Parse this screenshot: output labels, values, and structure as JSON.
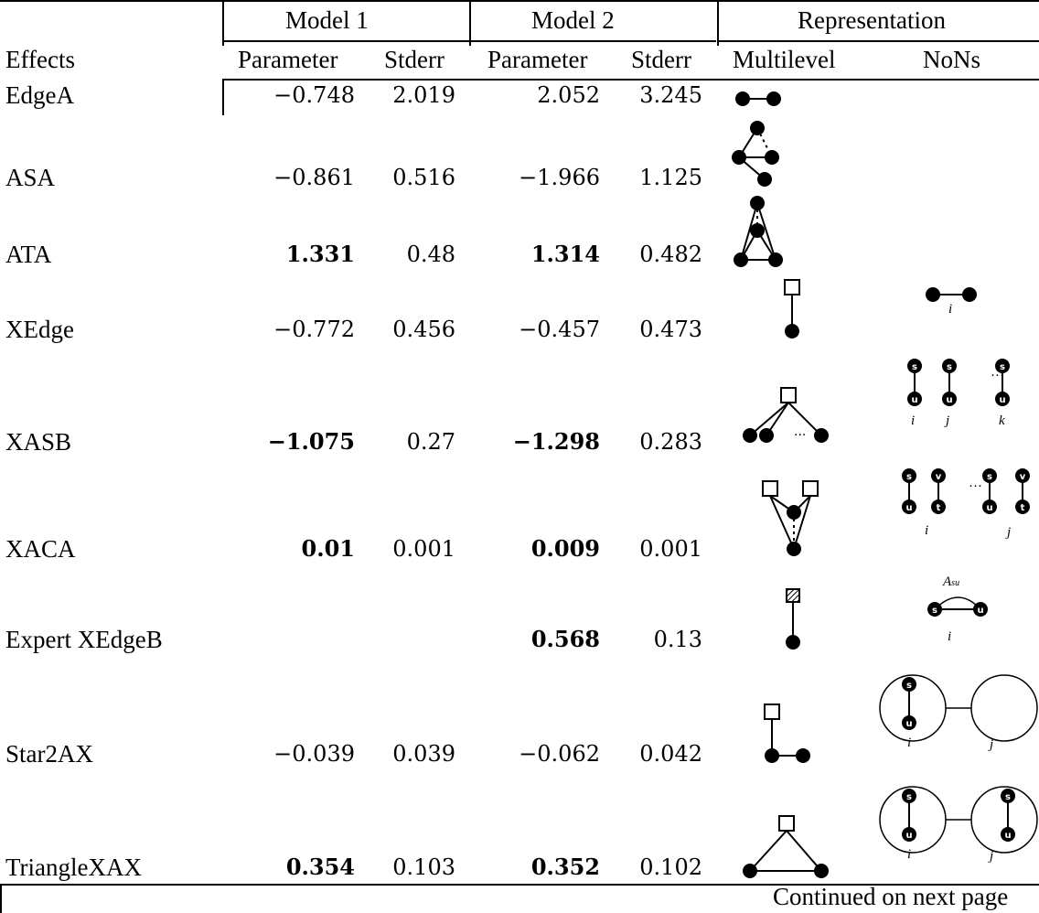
{
  "header": {
    "group1": "Model 1",
    "group2": "Model 2",
    "group3": "Representation",
    "effects": "Effects",
    "parameter": "Parameter",
    "stderr": "Stderr",
    "multilevel": "Multilevel",
    "nons": "NoNs"
  },
  "rows": [
    {
      "effect": "EdgeA",
      "m1_param": "−0.748",
      "m1_se": "2.019",
      "m2_param": "2.052",
      "m2_se": "3.245",
      "m1_bold": false,
      "m2_bold": false,
      "multilevel_icon": "edge-icon",
      "nons_icon": ""
    },
    {
      "effect": "ASA",
      "m1_param": "−0.861",
      "m1_se": "0.516",
      "m2_param": "−1.966",
      "m2_se": "1.125",
      "m1_bold": false,
      "m2_bold": false,
      "multilevel_icon": "alternating-star-icon",
      "nons_icon": ""
    },
    {
      "effect": "ATA",
      "m1_param": "1.331",
      "m1_se": "0.48",
      "m2_param": "1.314",
      "m2_se": "0.482",
      "m1_bold": true,
      "m2_bold": true,
      "multilevel_icon": "alternating-triangle-icon",
      "nons_icon": ""
    },
    {
      "effect": "XEdge",
      "m1_param": "−0.772",
      "m1_se": "0.456",
      "m2_param": "−0.457",
      "m2_se": "0.473",
      "m1_bold": false,
      "m2_bold": false,
      "multilevel_icon": "cross-edge-icon",
      "nons_icon": "node-edge-icon"
    },
    {
      "effect": "XASB",
      "m1_param": "−1.075",
      "m1_se": "0.27",
      "m2_param": "−1.298",
      "m2_se": "0.283",
      "m1_bold": true,
      "m2_bold": true,
      "multilevel_icon": "cross-star-icon",
      "nons_icon": "su-pairs-icon"
    },
    {
      "effect": "XACA",
      "m1_param": "0.01",
      "m1_se": "0.001",
      "m2_param": "0.009",
      "m2_se": "0.001",
      "m1_bold": true,
      "m2_bold": true,
      "multilevel_icon": "cross-alternating-icon",
      "nons_icon": "su-vt-pairs-icon"
    },
    {
      "effect": "Expert XEdgeB",
      "m1_param": "",
      "m1_se": "",
      "m2_param": "0.568",
      "m2_se": "0.13",
      "m1_bold": false,
      "m2_bold": true,
      "multilevel_icon": "expert-edge-icon",
      "nons_icon": "su-arc-icon"
    },
    {
      "effect": "Star2AX",
      "m1_param": "−0.039",
      "m1_se": "0.039",
      "m2_param": "−0.062",
      "m2_se": "0.042",
      "m1_bold": false,
      "m2_bold": false,
      "multilevel_icon": "two-star-icon",
      "nons_icon": "circle-pair-icon"
    },
    {
      "effect": "TriangleXAX",
      "m1_param": "0.354",
      "m1_se": "0.103",
      "m2_param": "0.352",
      "m2_se": "0.102",
      "m1_bold": true,
      "m2_bold": true,
      "multilevel_icon": "triangle-icon",
      "nons_icon": "circle-pair-su-icon"
    }
  ],
  "node_labels": {
    "s": "s",
    "u": "u",
    "v": "v",
    "t": "t",
    "i": "i",
    "j": "j",
    "k": "k",
    "asu": "A",
    "asu_sub": "su",
    "dots": "···"
  },
  "footer": "Continued on next page"
}
